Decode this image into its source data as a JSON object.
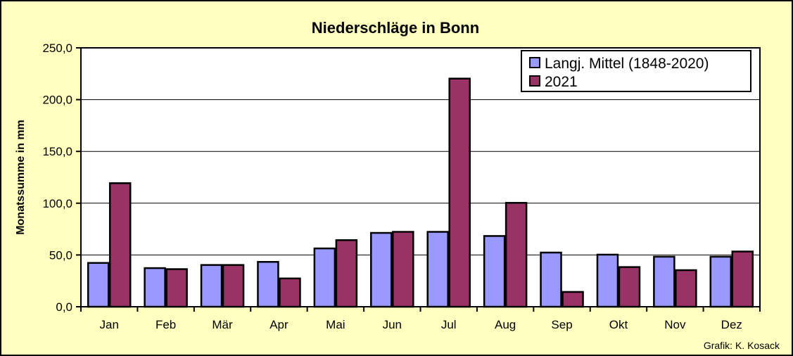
{
  "chart_data": {
    "type": "bar",
    "title": "Niederschläge in Bonn",
    "ylabel": "Monatssumme in mm",
    "xlabel": "",
    "categories": [
      "Jan",
      "Feb",
      "Mär",
      "Apr",
      "Mai",
      "Jun",
      "Jul",
      "Aug",
      "Sep",
      "Okt",
      "Nov",
      "Dez"
    ],
    "series": [
      {
        "name": "Langj. Mittel (1848-2020)",
        "color": "#9999ff",
        "values": [
          43,
          38,
          41,
          44,
          57,
          72,
          73,
          69,
          53,
          51,
          49,
          49
        ]
      },
      {
        "name": "2021",
        "color": "#993366",
        "values": [
          120,
          37,
          41,
          28,
          65,
          73,
          221,
          101,
          15,
          39,
          36,
          54
        ]
      }
    ],
    "ylim": [
      0,
      250
    ],
    "yticks": [
      "0,0",
      "50,0",
      "100,0",
      "150,0",
      "200,0",
      "250,0"
    ],
    "ytick_values": [
      0,
      50,
      100,
      150,
      200,
      250
    ],
    "grid": "horizontal",
    "legend_position": "top-right",
    "plot_background": "#ffffff",
    "page_background": "#ffffc0"
  },
  "credit": "Grafik:  K. Kosack"
}
